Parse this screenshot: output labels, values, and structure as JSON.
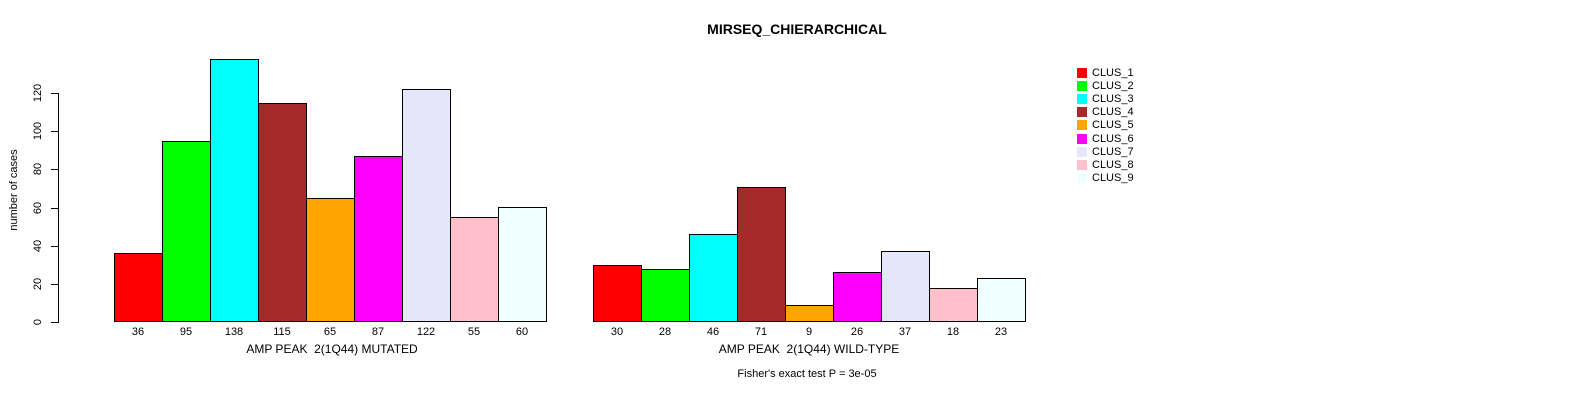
{
  "title": "MIRSEQ_CHIERARCHICAL",
  "chart_data": {
    "type": "bar",
    "title": "MIRSEQ_CHIERARCHICAL",
    "ylabel": "number of cases",
    "xlabel": "",
    "ylim": [
      0,
      140
    ],
    "yticks": [
      0,
      20,
      40,
      60,
      80,
      100,
      120
    ],
    "grid": false,
    "legend_position": "right",
    "clusters": [
      {
        "label": "CLUS_1",
        "color": "#FF0000"
      },
      {
        "label": "CLUS_2",
        "color": "#00FF00"
      },
      {
        "label": "CLUS_3",
        "color": "#00FFFF"
      },
      {
        "label": "CLUS_4",
        "color": "#A52A2A"
      },
      {
        "label": "CLUS_5",
        "color": "#FFA500"
      },
      {
        "label": "CLUS_6",
        "color": "#FF00FF"
      },
      {
        "label": "CLUS_7",
        "color": "#E6E6FA"
      },
      {
        "label": "CLUS_8",
        "color": "#FFC0CB"
      },
      {
        "label": "CLUS_9",
        "color": "#F0FFFF"
      }
    ],
    "panels": [
      {
        "xlabel": "AMP PEAK  2(1Q44) MUTATED",
        "categories": [
          "CLUS_1",
          "CLUS_2",
          "CLUS_3",
          "CLUS_4",
          "CLUS_5",
          "CLUS_6",
          "CLUS_7",
          "CLUS_8",
          "CLUS_9"
        ],
        "values": [
          36,
          95,
          138,
          115,
          65,
          87,
          122,
          55,
          60
        ]
      },
      {
        "xlabel": "AMP PEAK  2(1Q44) WILD-TYPE",
        "categories": [
          "CLUS_1",
          "CLUS_2",
          "CLUS_3",
          "CLUS_4",
          "CLUS_5",
          "CLUS_6",
          "CLUS_7",
          "CLUS_8",
          "CLUS_9"
        ],
        "values": [
          30,
          28,
          46,
          71,
          9,
          26,
          37,
          18,
          23
        ]
      }
    ],
    "annotation": "Fisher's exact test P = 3e-05"
  }
}
